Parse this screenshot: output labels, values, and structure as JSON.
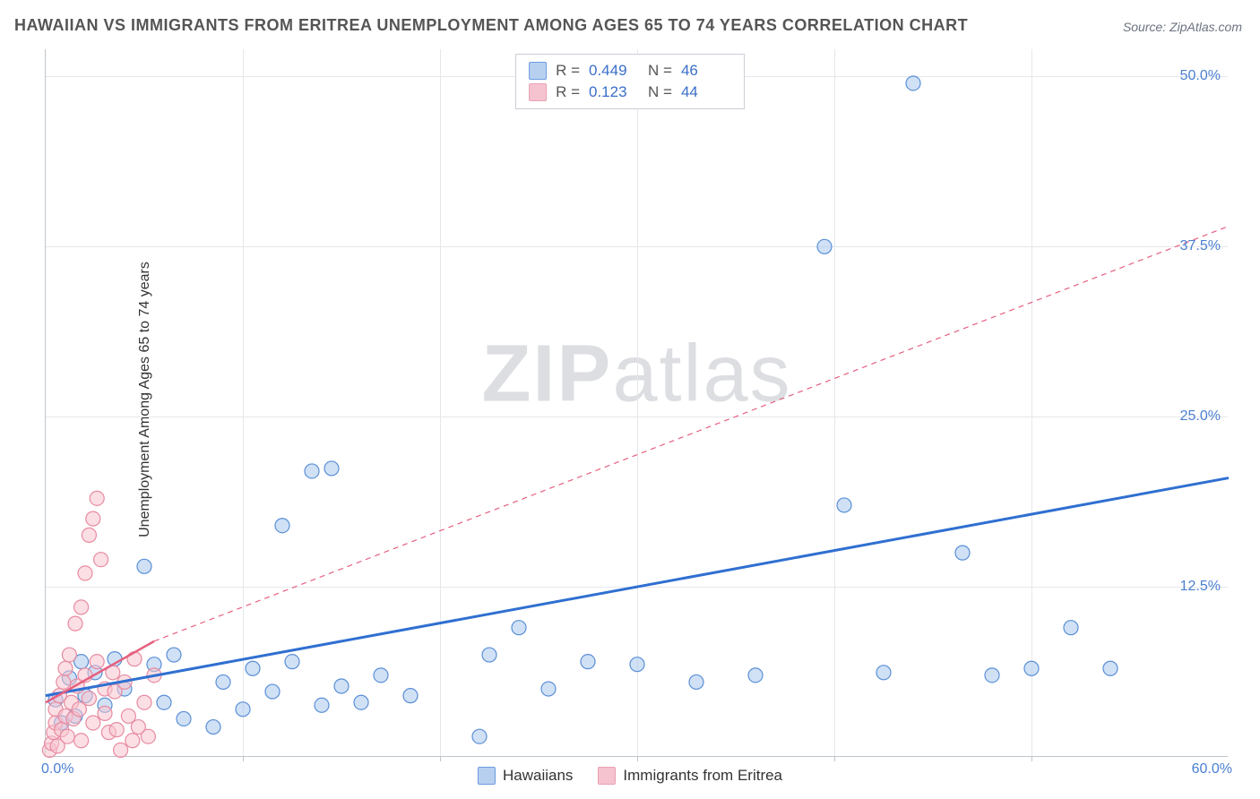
{
  "title": "HAWAIIAN VS IMMIGRANTS FROM ERITREA UNEMPLOYMENT AMONG AGES 65 TO 74 YEARS CORRELATION CHART",
  "source": "Source: ZipAtlas.com",
  "watermark_zip": "ZIP",
  "watermark_atlas": "atlas",
  "y_axis_label": "Unemployment Among Ages 65 to 74 years",
  "chart": {
    "type": "scatter",
    "xlim": [
      0,
      60
    ],
    "ylim": [
      0,
      52
    ],
    "x_origin_label": "0.0%",
    "x_max_label": "60.0%",
    "x_ticks": [
      10,
      20,
      30,
      40,
      50
    ],
    "y_ticks": [
      {
        "value": 12.5,
        "label": "12.5%"
      },
      {
        "value": 25.0,
        "label": "25.0%"
      },
      {
        "value": 37.5,
        "label": "37.5%"
      },
      {
        "value": 50.0,
        "label": "50.0%"
      }
    ],
    "background_color": "#ffffff",
    "grid_color": "#e5e7eb",
    "axis_color": "#bfc5cc",
    "marker_radius": 8,
    "marker_opacity": 0.55,
    "series": [
      {
        "name": "Hawaiians",
        "color_fill": "#aac8ee",
        "color_stroke": "#5a8fd6",
        "legend_swatch_fill": "#b8d0f0",
        "legend_swatch_stroke": "#6b9be0",
        "r": "0.449",
        "n": "46",
        "points": [
          [
            0.5,
            4.2
          ],
          [
            0.8,
            2.5
          ],
          [
            1.2,
            5.8
          ],
          [
            1.5,
            3.0
          ],
          [
            1.8,
            7.0
          ],
          [
            2.0,
            4.5
          ],
          [
            2.5,
            6.2
          ],
          [
            3.0,
            3.8
          ],
          [
            3.5,
            7.2
          ],
          [
            4.0,
            5.0
          ],
          [
            5.0,
            14.0
          ],
          [
            5.5,
            6.8
          ],
          [
            6.0,
            4.0
          ],
          [
            6.5,
            7.5
          ],
          [
            7.0,
            2.8
          ],
          [
            8.5,
            2.2
          ],
          [
            9.0,
            5.5
          ],
          [
            10.0,
            3.5
          ],
          [
            10.5,
            6.5
          ],
          [
            11.5,
            4.8
          ],
          [
            12.0,
            17.0
          ],
          [
            12.5,
            7.0
          ],
          [
            13.5,
            21.0
          ],
          [
            14.0,
            3.8
          ],
          [
            14.5,
            21.2
          ],
          [
            15.0,
            5.2
          ],
          [
            16.0,
            4.0
          ],
          [
            17.0,
            6.0
          ],
          [
            18.5,
            4.5
          ],
          [
            22.0,
            1.5
          ],
          [
            22.5,
            7.5
          ],
          [
            24.0,
            9.5
          ],
          [
            25.5,
            5.0
          ],
          [
            27.5,
            7.0
          ],
          [
            30.0,
            6.8
          ],
          [
            33.0,
            5.5
          ],
          [
            36.0,
            6.0
          ],
          [
            39.5,
            37.5
          ],
          [
            40.5,
            18.5
          ],
          [
            42.5,
            6.2
          ],
          [
            44.0,
            49.5
          ],
          [
            46.5,
            15.0
          ],
          [
            48.0,
            6.0
          ],
          [
            50.0,
            6.5
          ],
          [
            52.0,
            9.5
          ],
          [
            54.0,
            6.5
          ]
        ],
        "trend_solid": {
          "x1": 0,
          "y1": 4.5,
          "x2": 60,
          "y2": 20.5,
          "width": 3,
          "color": "#2f6fd1"
        }
      },
      {
        "name": "Immigrants from Eritrea",
        "color_fill": "#f7c4cf",
        "color_stroke": "#e88ba0",
        "legend_swatch_fill": "#f5c3cf",
        "legend_swatch_stroke": "#eaa0b2",
        "r": "0.123",
        "n": "44",
        "points": [
          [
            0.2,
            0.5
          ],
          [
            0.3,
            1.0
          ],
          [
            0.4,
            1.8
          ],
          [
            0.5,
            2.5
          ],
          [
            0.5,
            3.5
          ],
          [
            0.6,
            0.8
          ],
          [
            0.7,
            4.5
          ],
          [
            0.8,
            2.0
          ],
          [
            0.9,
            5.5
          ],
          [
            1.0,
            3.0
          ],
          [
            1.0,
            6.5
          ],
          [
            1.1,
            1.5
          ],
          [
            1.2,
            7.5
          ],
          [
            1.3,
            4.0
          ],
          [
            1.4,
            2.8
          ],
          [
            1.5,
            9.8
          ],
          [
            1.6,
            5.2
          ],
          [
            1.7,
            3.5
          ],
          [
            1.8,
            11.0
          ],
          [
            1.8,
            1.2
          ],
          [
            2.0,
            13.5
          ],
          [
            2.0,
            6.0
          ],
          [
            2.2,
            16.3
          ],
          [
            2.2,
            4.3
          ],
          [
            2.4,
            17.5
          ],
          [
            2.4,
            2.5
          ],
          [
            2.6,
            19.0
          ],
          [
            2.6,
            7.0
          ],
          [
            2.8,
            14.5
          ],
          [
            3.0,
            5.0
          ],
          [
            3.0,
            3.2
          ],
          [
            3.2,
            1.8
          ],
          [
            3.4,
            6.2
          ],
          [
            3.5,
            4.8
          ],
          [
            3.6,
            2.0
          ],
          [
            3.8,
            0.5
          ],
          [
            4.0,
            5.5
          ],
          [
            4.2,
            3.0
          ],
          [
            4.4,
            1.2
          ],
          [
            4.5,
            7.2
          ],
          [
            4.7,
            2.2
          ],
          [
            5.0,
            4.0
          ],
          [
            5.2,
            1.5
          ],
          [
            5.5,
            6.0
          ]
        ],
        "trend_solid": {
          "x1": 0,
          "y1": 4.0,
          "x2": 5.5,
          "y2": 8.5,
          "width": 2.5,
          "color": "#e6607f"
        },
        "trend_dashed": {
          "x1": 5.5,
          "y1": 8.5,
          "x2": 60,
          "y2": 39.0,
          "width": 1.2,
          "color": "#e6607f",
          "dash": "6,5"
        }
      }
    ]
  },
  "legend_top": {
    "r_prefix": "R =",
    "n_prefix": "N ="
  },
  "legend_bottom": {
    "items": [
      "Hawaiians",
      "Immigrants from Eritrea"
    ]
  }
}
